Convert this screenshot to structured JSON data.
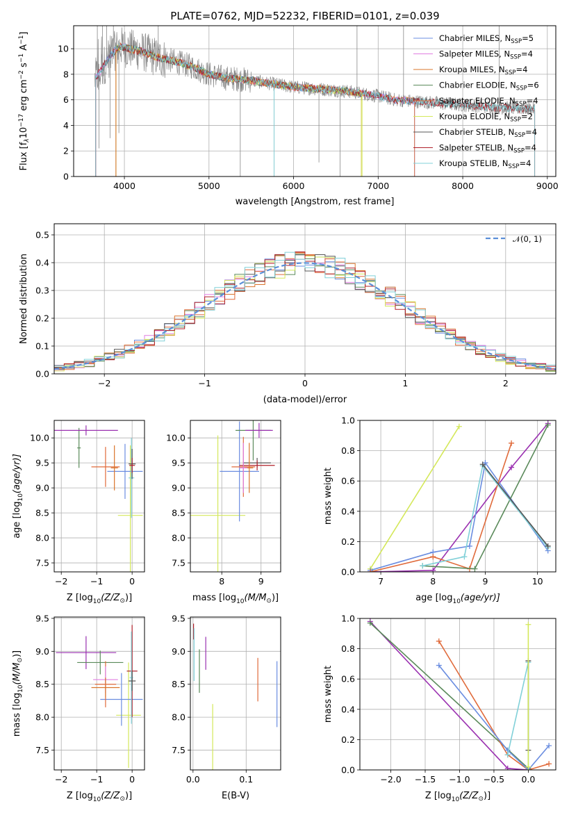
{
  "colors": {
    "Chabrier MILES": "#6a8de0",
    "Salpeter MILES": "#e07de0",
    "Kroupa MILES": "#d9742b",
    "Chabrier ELODIE": "#5a8a5a",
    "Salpeter ELODIE": "#e06a3a",
    "Kroupa ELODIE": "#d4e85a",
    "Chabrier STELIB": "#555555",
    "Salpeter STELIB": "#b0202a",
    "Kroupa STELIB": "#80d0d8",
    "pdf_curve": "#5b8fd8",
    "scatter1_purple": "#9a30b0",
    "data_spectrum": "#888888"
  },
  "chart_data": [
    {
      "type": "line",
      "title": "PLATE=0762, MJD=52232, FIBERID=0101, z=0.039",
      "xlabel": "wavelength [Angstrom, rest frame]",
      "ylabel_main": "Flux [f",
      "ylabel_sub": "λ",
      "ylabel_mid": "10",
      "ylabel_sup1": "−17",
      "ylabel_end": " erg cm",
      "ylabel_sup2": "−2",
      "ylabel_end2": " s",
      "ylabel_sup3": "−1",
      "ylabel_end3": " A",
      "ylabel_sup4": "−1",
      "ylabel_close": "]",
      "xlim": [
        3400,
        9100
      ],
      "ylim": [
        0,
        11.8
      ],
      "xticks": [
        4000,
        5000,
        6000,
        7000,
        8000,
        9000
      ],
      "yticks": [
        0,
        2,
        4,
        6,
        8,
        10
      ],
      "legend": "top-right",
      "legend_entries": [
        {
          "label": "Chabrier MILES, N",
          "sub": "SSP",
          "val": "=5"
        },
        {
          "label": "Salpeter MILES, N",
          "sub": "SSP",
          "val": "=4"
        },
        {
          "label": "Kroupa MILES, N",
          "sub": "SSP",
          "val": "=4"
        },
        {
          "label": "Chabrier ELODIE, N",
          "sub": "SSP",
          "val": "=6"
        },
        {
          "label": "Salpeter ELODIE, N",
          "sub": "SSP",
          "val": "=4"
        },
        {
          "label": "Kroupa ELODIE, N",
          "sub": "SSP",
          "val": "=2"
        },
        {
          "label": "Chabrier STELIB, N",
          "sub": "SSP",
          "val": "=4"
        },
        {
          "label": "Salpeter STELIB, N",
          "sub": "SSP",
          "val": "=4"
        },
        {
          "label": "Kroupa STELIB, N",
          "sub": "SSP",
          "val": "=4"
        }
      ],
      "continuum": [
        [
          3650,
          7.6
        ],
        [
          3750,
          8.6
        ],
        [
          3850,
          9.6
        ],
        [
          3950,
          10.2
        ],
        [
          4050,
          10.0
        ],
        [
          4200,
          9.8
        ],
        [
          4400,
          9.3
        ],
        [
          4600,
          9.0
        ],
        [
          4800,
          8.6
        ],
        [
          5000,
          8.0
        ],
        [
          5200,
          7.7
        ],
        [
          5400,
          7.6
        ],
        [
          5600,
          7.4
        ],
        [
          5800,
          7.2
        ],
        [
          6000,
          7.0
        ],
        [
          6200,
          6.9
        ],
        [
          6400,
          6.8
        ],
        [
          6600,
          6.7
        ],
        [
          6800,
          6.5
        ],
        [
          7000,
          6.3
        ],
        [
          7200,
          6.0
        ],
        [
          7400,
          5.9
        ],
        [
          7600,
          5.8
        ],
        [
          7800,
          5.7
        ],
        [
          8000,
          5.6
        ],
        [
          8200,
          5.5
        ],
        [
          8400,
          5.4
        ],
        [
          8600,
          5.35
        ],
        [
          8800,
          5.3
        ]
      ],
      "model_dropouts": [
        {
          "model": "Chabrier MILES",
          "start": 3660,
          "end": 7430
        },
        {
          "model": "Salpeter MILES",
          "start": 3660,
          "end": 7430
        },
        {
          "model": "Kroupa MILES",
          "start": 3900,
          "end": 7430
        },
        {
          "model": "Chabrier ELODIE",
          "start": 3900,
          "end": 6800
        },
        {
          "model": "Salpeter ELODIE",
          "start": 3900,
          "end": 6800
        },
        {
          "model": "Kroupa ELODIE",
          "start": 3900,
          "end": 6800
        },
        {
          "model": "Chabrier STELIB",
          "start": 3660,
          "end": 8850
        },
        {
          "model": "Salpeter STELIB",
          "start": 3660,
          "end": 8850
        },
        {
          "model": "Kroupa STELIB",
          "start": 3660,
          "end": 8850
        }
      ]
    },
    {
      "type": "line",
      "xlabel": "(data-model)/error",
      "ylabel": "Normed distribution",
      "xlim": [
        -2.5,
        2.5
      ],
      "ylim": [
        0,
        0.54
      ],
      "xticks": [
        -2,
        -1,
        0,
        1,
        2
      ],
      "yticks": [
        0.0,
        0.1,
        0.2,
        0.3,
        0.4,
        0.5
      ],
      "legend": "top-right",
      "curve_label": "𝒩(0, 1)",
      "bin_width": 0.1,
      "hist_base": [
        0.03,
        0.03,
        0.03,
        0.04,
        0.05,
        0.06,
        0.07,
        0.08,
        0.09,
        0.1,
        0.11,
        0.12,
        0.13,
        0.15,
        0.17,
        0.18,
        0.19,
        0.21,
        0.23,
        0.25,
        0.26,
        0.28,
        0.3,
        0.31,
        0.32,
        0.34,
        0.36,
        0.37,
        0.38,
        0.4,
        0.41,
        0.42,
        0.43,
        0.42,
        0.41,
        0.4,
        0.39,
        0.38,
        0.37,
        0.35,
        0.33,
        0.32,
        0.3,
        0.28,
        0.27,
        0.25,
        0.23,
        0.21,
        0.2,
        0.18,
        0.17,
        0.15,
        0.14,
        0.12,
        0.11,
        0.1,
        0.09,
        0.08,
        0.07,
        0.06,
        0.05,
        0.05,
        0.04,
        0.04,
        0.03,
        0.03,
        0.03,
        0.03,
        0.03,
        0.03,
        0.03,
        0.03,
        0.02,
        0.02,
        0.02,
        0.02,
        0.02,
        0.02,
        0.02,
        0.02,
        0.02,
        0.02,
        0.02,
        0.02,
        0.02,
        0.02,
        0.02,
        0.02,
        0.02,
        0.02,
        0.02,
        0.02,
        0.02,
        0.02,
        0.02,
        0.02,
        0.02,
        0.02,
        0.02,
        0.02
      ]
    },
    {
      "type": "scatter",
      "xlabel": "Z [log",
      "xlabel_sub": "10",
      "xlabel_rest": "(Z/Z",
      "xlabel_sun": "⊙",
      "xlabel_close": ")]",
      "ylabel": "age  [log",
      "ylabel_sub": "10",
      "ylabel_rest": "(age/yr)]",
      "xlim": [
        -2.2,
        0.35
      ],
      "ylim": [
        7.32,
        10.35
      ],
      "xticks": [
        -2,
        -1,
        0
      ],
      "yticks": [
        7.5,
        8.0,
        8.5,
        9.0,
        9.5,
        10.0
      ],
      "points": [
        {
          "c": "Kroupa ELODIE",
          "x": -0.05,
          "xe": 0.35,
          "y": 8.45,
          "ye": 1.4
        },
        {
          "c": "Chabrier ELODIE",
          "x": -1.5,
          "xe": 0.05,
          "y": 9.8,
          "ye": 0.4
        },
        {
          "c": "scatter1_purple",
          "x": -1.3,
          "xe": 0.9,
          "y": 10.15,
          "ye": 0.1
        },
        {
          "c": "Salpeter ELODIE",
          "x": -0.75,
          "xe": 0.4,
          "y": 9.42,
          "ye": 0.4
        },
        {
          "c": "Chabrier MILES",
          "x": -0.2,
          "xe": 0.5,
          "y": 9.33,
          "ye": 0.55
        },
        {
          "c": "Kroupa STELIB",
          "x": -0.02,
          "xe": 0.08,
          "y": 9.2,
          "ye": 0.8
        },
        {
          "c": "Chabrier STELIB",
          "x": 0.0,
          "xe": 0.1,
          "y": 9.48,
          "ye": 0.3
        },
        {
          "c": "Salpeter STELIB",
          "x": 0.0,
          "xe": 0.08,
          "y": 9.45,
          "ye": 0.15
        },
        {
          "c": "Kroupa MILES",
          "x": -0.5,
          "xe": 0.1,
          "y": 9.4,
          "ye": 0.45
        }
      ]
    },
    {
      "type": "scatter",
      "xlabel": "mass [log",
      "xlabel_sub": "10",
      "xlabel_rest": "(M/M",
      "xlabel_sun": "⊙",
      "xlabel_close": ")]",
      "xlim": [
        7.2,
        9.5
      ],
      "ylim": [
        7.32,
        10.35
      ],
      "xticks": [
        8,
        9
      ],
      "yticks": [
        7.5,
        8.0,
        8.5,
        9.0,
        9.5,
        10.0
      ],
      "points": [
        {
          "c": "Kroupa ELODIE",
          "x": 7.9,
          "xe": 0.7,
          "y": 8.45,
          "ye": 1.6
        },
        {
          "c": "Chabrier MILES",
          "x": 8.45,
          "xe": 0.5,
          "y": 9.33,
          "ye": 1.0
        },
        {
          "c": "Chabrier ELODIE",
          "x": 8.8,
          "xe": 0.45,
          "y": 10.15,
          "ye": 0.6
        },
        {
          "c": "scatter1_purple",
          "x": 8.95,
          "xe": 0.35,
          "y": 10.15,
          "ye": 0.15
        },
        {
          "c": "Salpeter ELODIE",
          "x": 8.55,
          "xe": 0.3,
          "y": 9.42,
          "ye": 0.6
        },
        {
          "c": "Chabrier STELIB",
          "x": 8.9,
          "xe": 0.35,
          "y": 9.5,
          "ye": 0.1
        },
        {
          "c": "Salpeter STELIB",
          "x": 8.9,
          "xe": 0.45,
          "y": 9.45,
          "ye": 0.1
        },
        {
          "c": "Kroupa MILES",
          "x": 8.7,
          "xe": 0.1,
          "y": 9.4,
          "ye": 0.5
        },
        {
          "c": "Salpeter MILES",
          "x": 8.55,
          "xe": 0.1,
          "y": 9.4,
          "ye": 0.5
        }
      ]
    },
    {
      "type": "line",
      "xlabel": "age  [log",
      "xlabel_sub": "10",
      "xlabel_rest": "(age/yr)]",
      "ylabel": "mass weight",
      "xlim": [
        6.6,
        10.35
      ],
      "ylim": [
        0,
        1.0
      ],
      "xticks": [
        7,
        8,
        9,
        10
      ],
      "yticks": [
        0.0,
        0.2,
        0.4,
        0.6,
        0.8,
        1.0
      ],
      "series": [
        {
          "c": "Kroupa ELODIE",
          "x": [
            6.8,
            8.5
          ],
          "y": [
            0.02,
            0.96
          ]
        },
        {
          "c": "scatter1_purple",
          "x": [
            6.8,
            8.0,
            9.5,
            10.2
          ],
          "y": [
            0.0,
            0.01,
            0.69,
            0.98
          ]
        },
        {
          "c": "Chabrier MILES",
          "x": [
            6.8,
            8.0,
            8.7,
            9.0,
            10.2
          ],
          "y": [
            0.01,
            0.13,
            0.17,
            0.72,
            0.14
          ]
        },
        {
          "c": "Salpeter ELODIE",
          "x": [
            6.8,
            8.0,
            8.7,
            9.5
          ],
          "y": [
            0.0,
            0.1,
            0.02,
            0.85
          ]
        },
        {
          "c": "Chabrier ELODIE",
          "x": [
            7.8,
            8.8,
            10.2
          ],
          "y": [
            0.04,
            0.02,
            0.97
          ]
        },
        {
          "c": "Kroupa STELIB",
          "x": [
            7.8,
            8.6,
            8.95,
            10.2
          ],
          "y": [
            0.04,
            0.1,
            0.7,
            0.16
          ]
        },
        {
          "c": "Chabrier STELIB",
          "x": [
            8.95,
            10.2
          ],
          "y": [
            0.71,
            0.17
          ]
        }
      ]
    },
    {
      "type": "scatter",
      "xlabel": "Z [log",
      "xlabel_sub": "10",
      "xlabel_rest": "(Z/Z",
      "xlabel_sun": "⊙",
      "xlabel_close": ")]",
      "ylabel": "mass [log",
      "ylabel_sub": "10",
      "ylabel_rest": "(M/M",
      "ylabel_sun": "⊙",
      "ylabel_close": ")]",
      "xlim": [
        -2.2,
        0.35
      ],
      "ylim": [
        7.2,
        9.52
      ],
      "xticks": [
        -2,
        -1,
        0
      ],
      "yticks": [
        7.5,
        8.0,
        8.5,
        9.0,
        9.5
      ],
      "points": [
        {
          "c": "Kroupa ELODIE",
          "x": -0.1,
          "xe": 0.35,
          "y": 8.03,
          "ye": 0.8
        },
        {
          "c": "scatter1_purple",
          "x": -1.3,
          "xe": 0.85,
          "y": 8.98,
          "ye": 0.25
        },
        {
          "c": "Chabrier ELODIE",
          "x": -0.9,
          "xe": 0.65,
          "y": 8.83,
          "ye": 0.18
        },
        {
          "c": "Chabrier MILES",
          "x": -0.3,
          "xe": 0.6,
          "y": 8.27,
          "ye": 0.4
        },
        {
          "c": "Salpeter ELODIE",
          "x": -0.75,
          "xe": 0.3,
          "y": 8.5,
          "ye": 0.35
        },
        {
          "c": "Salpeter MILES",
          "x": -0.75,
          "xe": 0.35,
          "y": 8.57,
          "ye": 0.2
        },
        {
          "c": "Kroupa MILES",
          "x": -0.75,
          "xe": 0.4,
          "y": 8.45,
          "ye": 0.15
        },
        {
          "c": "Salpeter STELIB",
          "x": 0.0,
          "xe": 0.15,
          "y": 8.7,
          "ye": 0.7
        },
        {
          "c": "Kroupa STELIB",
          "x": -0.02,
          "xe": 0.05,
          "y": 8.6,
          "ye": 0.7
        },
        {
          "c": "Chabrier STELIB",
          "x": 0.0,
          "xe": 0.1,
          "y": 8.55,
          "ye": 0.15
        }
      ]
    },
    {
      "type": "scatter",
      "xlabel": "E(B-V)",
      "xlim": [
        -0.005,
        0.165
      ],
      "ylim": [
        7.2,
        9.52
      ],
      "xticks": [
        0.0,
        0.1
      ],
      "yticks": [
        7.5,
        8.0,
        8.5,
        9.0,
        9.5
      ],
      "points": [
        {
          "c": "Kroupa ELODIE",
          "x": 0.037,
          "ye": 0.6,
          "y": 7.6
        },
        {
          "c": "scatter1_purple",
          "x": 0.024,
          "ye": 0.25,
          "y": 8.97
        },
        {
          "c": "Chabrier ELODIE",
          "x": 0.012,
          "ye": 0.33,
          "y": 8.7
        },
        {
          "c": "Salpeter STELIB",
          "x": 0.001,
          "ye": 0.12,
          "y": 9.3
        },
        {
          "c": "Kroupa STELIB",
          "x": 0.002,
          "ye": 0.4,
          "y": 8.95
        },
        {
          "c": "Salpeter ELODIE",
          "x": 0.122,
          "ye": 0.33,
          "y": 8.57
        },
        {
          "c": "Chabrier MILES",
          "x": 0.158,
          "ye": 0.5,
          "y": 8.35
        }
      ]
    },
    {
      "type": "line",
      "xlabel": "Z [log",
      "xlabel_sub": "10",
      "xlabel_rest": "(Z/Z",
      "xlabel_sun": "⊙",
      "xlabel_close": ")]",
      "ylabel": "mass weight",
      "xlim": [
        -2.45,
        0.4
      ],
      "ylim": [
        0,
        1.0
      ],
      "xticks": [
        -2.0,
        -1.5,
        -1.0,
        -0.5,
        0.0
      ],
      "xtick_labels": [
        "−2.0",
        "−1.5",
        "−1.0",
        "−0.5",
        "0.0"
      ],
      "yticks": [
        0.0,
        0.2,
        0.4,
        0.6,
        0.8,
        1.0
      ],
      "series": [
        {
          "c": "scatter1_purple",
          "x": [
            -2.3,
            -0.3,
            0.0
          ],
          "y": [
            0.98,
            0.01,
            0.0
          ]
        },
        {
          "c": "Chabrier ELODIE",
          "x": [
            -2.3,
            0.0
          ],
          "y": [
            0.97,
            0.01
          ]
        },
        {
          "c": "Salpeter ELODIE",
          "x": [
            -1.3,
            -0.3,
            0.0,
            0.3
          ],
          "y": [
            0.85,
            0.1,
            0.0,
            0.04
          ]
        },
        {
          "c": "Chabrier MILES",
          "x": [
            -1.3,
            -0.3,
            0.0,
            0.3
          ],
          "y": [
            0.69,
            0.13,
            0.0,
            0.16
          ]
        },
        {
          "c": "Kroupa STELIB",
          "x": [
            -0.3,
            0.0,
            0.0
          ],
          "y": [
            0.1,
            0.71,
            0.0
          ]
        },
        {
          "c": "Chabrier STELIB",
          "x": [
            0.0,
            0.0
          ],
          "y": [
            0.72,
            0.13
          ]
        },
        {
          "c": "Kroupa ELODIE",
          "x": [
            0.0,
            0.0
          ],
          "y": [
            0.96,
            0.02
          ]
        }
      ]
    }
  ]
}
